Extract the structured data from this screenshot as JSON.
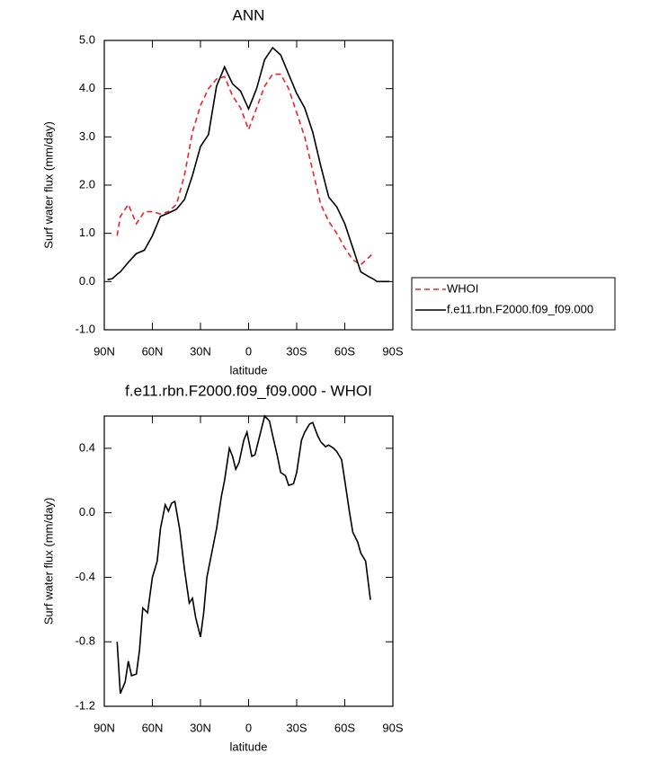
{
  "chart_data": [
    {
      "type": "line",
      "title": "ANN",
      "xlabel": "latitude",
      "ylabel": "Surf water flux (mm/day)",
      "x": [
        88,
        85,
        82,
        80,
        75,
        70,
        65,
        60,
        55,
        50,
        45,
        40,
        35,
        30,
        25,
        20,
        15,
        10,
        5,
        0,
        -5,
        -10,
        -15,
        -20,
        -25,
        -30,
        -35,
        -40,
        -45,
        -50,
        -55,
        -60,
        -65,
        -70,
        -75,
        -78,
        -80,
        -85,
        -88
      ],
      "series": [
        {
          "name": "WHOI",
          "color": "#e8262a",
          "linestyle": "dashed",
          "values": [
            null,
            null,
            0.95,
            1.35,
            1.6,
            1.2,
            1.45,
            1.45,
            1.4,
            1.45,
            1.6,
            2.2,
            3.1,
            3.65,
            4.0,
            4.2,
            4.25,
            3.85,
            3.6,
            3.15,
            3.6,
            4.05,
            4.3,
            4.3,
            4.0,
            3.5,
            3.0,
            2.3,
            1.6,
            1.25,
            1.0,
            0.7,
            0.45,
            0.35,
            0.5,
            0.6,
            null,
            null,
            null
          ]
        },
        {
          "name": "f.e11.rbn.F2000.f09_f09.000",
          "color": "#000000",
          "linestyle": "solid",
          "values": [
            0.04,
            0.06,
            0.15,
            0.2,
            0.4,
            0.58,
            0.65,
            0.95,
            1.35,
            1.42,
            1.5,
            1.7,
            2.2,
            2.8,
            3.05,
            4.05,
            4.45,
            4.1,
            3.95,
            3.58,
            4.0,
            4.6,
            4.85,
            4.7,
            4.3,
            3.9,
            3.6,
            3.1,
            2.4,
            1.75,
            1.55,
            1.2,
            0.7,
            0.2,
            0.1,
            0.05,
            0.0,
            0.0,
            0.0
          ]
        }
      ],
      "xlim": [
        90,
        -90
      ],
      "xticks": [
        {
          "value": 90,
          "label": "90N"
        },
        {
          "value": 60,
          "label": "60N"
        },
        {
          "value": 30,
          "label": "30N"
        },
        {
          "value": 0,
          "label": "0"
        },
        {
          "value": -30,
          "label": "30S"
        },
        {
          "value": -60,
          "label": "60S"
        },
        {
          "value": -90,
          "label": "90S"
        }
      ],
      "ylim": [
        -1,
        5
      ],
      "yticks": [
        {
          "value": -1,
          "label": "-1.0"
        },
        {
          "value": 0,
          "label": "0.0"
        },
        {
          "value": 1,
          "label": "1.0"
        },
        {
          "value": 2,
          "label": "2.0"
        },
        {
          "value": 3,
          "label": "3.0"
        },
        {
          "value": 4,
          "label": "4.0"
        },
        {
          "value": 5,
          "label": "5.0"
        }
      ],
      "legend": "right"
    },
    {
      "type": "line",
      "title": "f.e11.rbn.F2000.f09_f09.000 - WHOI",
      "xlabel": "latitude",
      "ylabel": "Surf water flux (mm/day)",
      "x": [
        82,
        80,
        77,
        75,
        73,
        70,
        68,
        66,
        63,
        60,
        57,
        55,
        52,
        50,
        48,
        46,
        43,
        40,
        37,
        35,
        33,
        30,
        28,
        26,
        23,
        20,
        17,
        15,
        12,
        10,
        8,
        6,
        3,
        1,
        -2,
        -4,
        -7,
        -10,
        -13,
        -15,
        -18,
        -20,
        -23,
        -25,
        -28,
        -30,
        -33,
        -35,
        -38,
        -40,
        -43,
        -45,
        -48,
        -50,
        -53,
        -55,
        -58,
        -60,
        -63,
        -65,
        -68,
        -70,
        -73,
        -76
      ],
      "values": [
        -0.8,
        -1.12,
        -1.05,
        -0.92,
        -1.01,
        -1.0,
        -0.85,
        -0.59,
        -0.62,
        -0.4,
        -0.3,
        -0.1,
        0.05,
        0.01,
        0.06,
        0.07,
        -0.1,
        -0.35,
        -0.56,
        -0.53,
        -0.65,
        -0.77,
        -0.62,
        -0.4,
        -0.25,
        -0.1,
        0.1,
        0.2,
        0.4,
        0.35,
        0.27,
        0.31,
        0.45,
        0.5,
        0.35,
        0.36,
        0.48,
        0.6,
        0.57,
        0.48,
        0.35,
        0.25,
        0.23,
        0.17,
        0.18,
        0.25,
        0.45,
        0.5,
        0.55,
        0.56,
        0.48,
        0.44,
        0.41,
        0.42,
        0.4,
        0.38,
        0.33,
        0.2,
        0.0,
        -0.12,
        -0.18,
        -0.25,
        -0.3,
        -0.54
      ],
      "color": "#000000",
      "xlim": [
        90,
        -90
      ],
      "xticks": [
        {
          "value": 90,
          "label": "90N"
        },
        {
          "value": 60,
          "label": "60N"
        },
        {
          "value": 30,
          "label": "30N"
        },
        {
          "value": 0,
          "label": "0"
        },
        {
          "value": -30,
          "label": "30S"
        },
        {
          "value": -60,
          "label": "60S"
        },
        {
          "value": -90,
          "label": "90S"
        }
      ],
      "ylim": [
        -1.2,
        0.6
      ],
      "yticks": [
        -1.2,
        -0.8,
        -0.4,
        {
          "value": 0,
          "label": "0.0"
        },
        0.4
      ]
    }
  ]
}
